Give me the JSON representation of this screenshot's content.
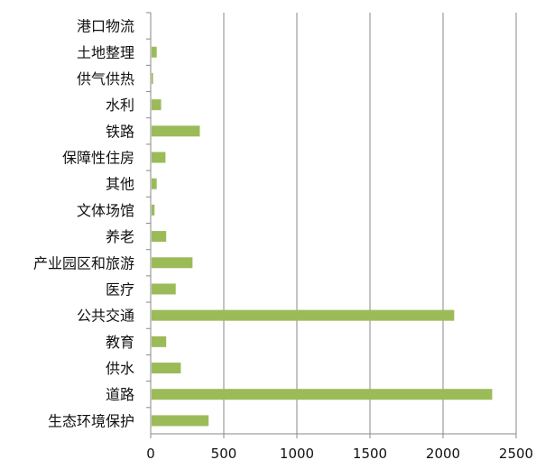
{
  "chart_data": {
    "type": "bar",
    "orientation": "horizontal",
    "categories": [
      "港口物流",
      "土地整理",
      "供气供热",
      "水利",
      "铁路",
      "保障性住房",
      "其他",
      "文体场馆",
      "养老",
      "产业园区和旅游",
      "医疗",
      "公共交通",
      "教育",
      "供水",
      "道路",
      "生态环境保护"
    ],
    "values": [
      0,
      35,
      10,
      65,
      330,
      95,
      35,
      20,
      100,
      280,
      165,
      2070,
      100,
      200,
      2330,
      390
    ],
    "xlim": [
      0,
      2500
    ],
    "x_ticks": [
      0,
      500,
      1000,
      1500,
      2000,
      2500
    ],
    "grid": true,
    "bar_color": "#9bbb59",
    "title": "",
    "xlabel": "",
    "ylabel": ""
  }
}
